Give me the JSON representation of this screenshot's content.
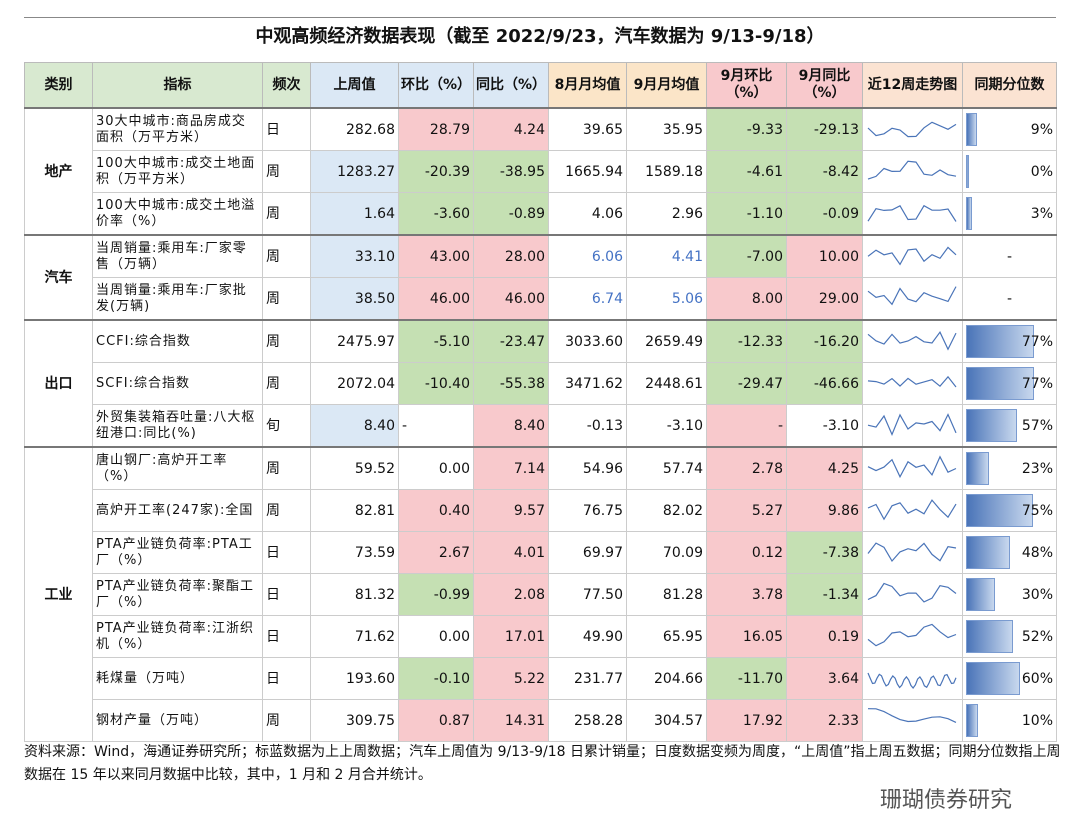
{
  "title": "中观高频经济数据表现（截至 2022/9/23，汽车数据为 9/13-9/18）",
  "table": {
    "headers": [
      "类别",
      "指标",
      "频次",
      "上周值",
      "环比（%）",
      "同比（%）",
      "8月月均值",
      "9月月均值",
      "9月环比（%）",
      "9月同比（%）",
      "近12周走势图",
      "同期分位数"
    ],
    "header_colors": [
      "#d8e9d0",
      "#d8e9d0",
      "#d8e9d0",
      "#dbe8f5",
      "#dbe8f5",
      "#dbe8f5",
      "#fbe5c8",
      "#fbe5c8",
      "#f8c9cc",
      "#f8c9cc",
      "#fbe3d2",
      "#fbe3d2"
    ],
    "groups": [
      {
        "label": "地产",
        "start": 0,
        "count": 3
      },
      {
        "label": "汽车",
        "start": 3,
        "count": 2
      },
      {
        "label": "出口",
        "start": 5,
        "count": 3
      },
      {
        "label": "工业",
        "start": 8,
        "count": 7
      }
    ],
    "rows": [
      {
        "name": "30大中城市:商品房成交面积（万平方米）",
        "freq": "日",
        "values": [
          "282.68",
          "28.79",
          "4.24",
          "39.65",
          "35.95",
          "-9.33",
          "-29.13"
        ],
        "colors": [
          null,
          "#f8c9cc",
          "#f8c9cc",
          null,
          null,
          "#c5e0b3",
          "#c5e0b3"
        ],
        "percentile": "9%"
      },
      {
        "name": "100大中城市:成交土地面积（万平方米）",
        "freq": "周",
        "values": [
          "1283.27",
          "-20.39",
          "-38.95",
          "1665.94",
          "1589.18",
          "-4.61",
          "-8.42"
        ],
        "colors": [
          "#dbe8f5",
          "#c5e0b3",
          "#c5e0b3",
          null,
          null,
          "#c5e0b3",
          "#c5e0b3"
        ],
        "percentile": "0%"
      },
      {
        "name": "100大中城市:成交土地溢价率（%）",
        "freq": "周",
        "values": [
          "1.64",
          "-3.60",
          "-0.89",
          "4.06",
          "2.96",
          "-1.10",
          "-0.09"
        ],
        "colors": [
          "#dbe8f5",
          "#c5e0b3",
          "#c5e0b3",
          null,
          null,
          "#c5e0b3",
          "#c5e0b3"
        ],
        "percentile": "3%"
      },
      {
        "name": "当周销量:乘用车:厂家零售（万辆）",
        "freq": "周",
        "values": [
          "33.10",
          "43.00",
          "28.00",
          "6.06",
          "4.41",
          "-7.00",
          "10.00"
        ],
        "colors": [
          "#dbe8f5",
          "#f8c9cc",
          "#f8c9cc",
          null,
          null,
          "#c5e0b3",
          "#f8c9cc"
        ],
        "text_colors": [
          null,
          null,
          null,
          "#4472c4",
          "#4472c4",
          null,
          null
        ],
        "percentile": "-"
      },
      {
        "name": "当周销量:乘用车:厂家批发(万辆)",
        "freq": "周",
        "values": [
          "38.50",
          "46.00",
          "46.00",
          "6.74",
          "5.06",
          "8.00",
          "29.00"
        ],
        "colors": [
          "#dbe8f5",
          "#f8c9cc",
          "#f8c9cc",
          null,
          null,
          "#f8c9cc",
          "#f8c9cc"
        ],
        "text_colors": [
          null,
          null,
          null,
          "#4472c4",
          "#4472c4",
          null,
          null
        ],
        "percentile": "-"
      },
      {
        "name": "CCFI:综合指数",
        "freq": "周",
        "values": [
          "2475.97",
          "-5.10",
          "-23.47",
          "3033.60",
          "2659.49",
          "-12.33",
          "-16.20"
        ],
        "colors": [
          null,
          "#c5e0b3",
          "#c5e0b3",
          null,
          null,
          "#c5e0b3",
          "#c5e0b3"
        ],
        "percentile": "77%"
      },
      {
        "name": "SCFI:综合指数",
        "freq": "周",
        "values": [
          "2072.04",
          "-10.40",
          "-55.38",
          "3471.62",
          "2448.61",
          "-29.47",
          "-46.66"
        ],
        "colors": [
          null,
          "#c5e0b3",
          "#c5e0b3",
          null,
          null,
          "#c5e0b3",
          "#c5e0b3"
        ],
        "percentile": "77%"
      },
      {
        "name": "外贸集装箱吞吐量:八大枢纽港口:同比(%)",
        "freq": "旬",
        "values": [
          "8.40",
          "-",
          "8.40",
          "-0.13",
          "-3.10",
          "-",
          "-3.10"
        ],
        "colors": [
          "#dbe8f5",
          null,
          "#f8c9cc",
          null,
          null,
          "#f8c9cc",
          null
        ],
        "percentile": "57%"
      },
      {
        "name": "唐山钢厂:高炉开工率（%）",
        "freq": "周",
        "values": [
          "59.52",
          "0.00",
          "7.14",
          "54.96",
          "57.74",
          "2.78",
          "4.25"
        ],
        "colors": [
          null,
          null,
          "#f8c9cc",
          null,
          null,
          "#f8c9cc",
          "#f8c9cc"
        ],
        "percentile": "23%"
      },
      {
        "name": "高炉开工率(247家):全国",
        "freq": "周",
        "values": [
          "82.81",
          "0.40",
          "9.57",
          "76.75",
          "82.02",
          "5.27",
          "9.86"
        ],
        "colors": [
          null,
          "#f8c9cc",
          "#f8c9cc",
          null,
          null,
          "#f8c9cc",
          "#f8c9cc"
        ],
        "percentile": "75%"
      },
      {
        "name": "PTA产业链负荷率:PTA工厂（%）",
        "freq": "日",
        "values": [
          "73.59",
          "2.67",
          "4.01",
          "69.97",
          "70.09",
          "0.12",
          "-7.38"
        ],
        "colors": [
          null,
          "#f8c9cc",
          "#f8c9cc",
          null,
          null,
          "#f8c9cc",
          "#c5e0b3"
        ],
        "percentile": "48%"
      },
      {
        "name": "PTA产业链负荷率:聚酯工厂（%）",
        "freq": "日",
        "values": [
          "81.32",
          "-0.99",
          "2.08",
          "77.50",
          "81.28",
          "3.78",
          "-1.34"
        ],
        "colors": [
          null,
          "#c5e0b3",
          "#f8c9cc",
          null,
          null,
          "#f8c9cc",
          "#c5e0b3"
        ],
        "percentile": "30%"
      },
      {
        "name": "PTA产业链负荷率:江浙织机（%）",
        "freq": "日",
        "values": [
          "71.62",
          "0.00",
          "17.01",
          "49.90",
          "65.95",
          "16.05",
          "0.19"
        ],
        "colors": [
          null,
          null,
          "#f8c9cc",
          null,
          null,
          "#f8c9cc",
          "#f8c9cc"
        ],
        "percentile": "52%"
      },
      {
        "name": "耗煤量（万吨）",
        "freq": "日",
        "values": [
          "193.60",
          "-0.10",
          "5.22",
          "231.77",
          "204.66",
          "-11.70",
          "3.64"
        ],
        "colors": [
          null,
          "#c5e0b3",
          "#f8c9cc",
          null,
          null,
          "#c5e0b3",
          "#f8c9cc"
        ],
        "percentile": "60%"
      },
      {
        "name": "钢材产量（万吨）",
        "freq": "周",
        "values": [
          "309.75",
          "0.87",
          "14.31",
          "258.28",
          "304.57",
          "17.92",
          "2.33"
        ],
        "colors": [
          null,
          "#f8c9cc",
          "#f8c9cc",
          null,
          null,
          "#f8c9cc",
          "#f8c9cc"
        ],
        "percentile": "10%"
      }
    ]
  },
  "footnote": "资料来源：Wind，海通证券研究所；标蓝数据为上上周数据；汽车上周值为 9/13-9/18 日累计销量；日度数据变频为周度，“上周值”指上周五数据；同期分位数指上周数据在 15 年以来同月数据中比较，其中，1 月和 2 月合并统计。",
  "watermark": "珊瑚债券研究"
}
